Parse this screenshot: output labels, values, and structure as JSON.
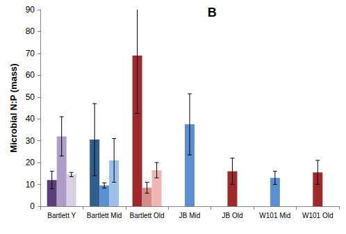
{
  "chart_data": {
    "type": "bar",
    "title": "B",
    "y_label": "Microbial N:P (mass)",
    "categories": [
      "Bartlett Y",
      "Bartlett Mid",
      "Bartlett Old",
      "JB Mid",
      "JB Old",
      "W101 Mid",
      "W101 Old"
    ],
    "series": [
      {
        "values": [
          12,
          30.5,
          69,
          null,
          null,
          null,
          null
        ],
        "errors": [
          4,
          16.5,
          26.5,
          null,
          null,
          null,
          null
        ],
        "colors": [
          "#5b3f7a",
          "#2e5f8f",
          "#9e2a2b",
          null,
          null,
          null,
          null
        ]
      },
      {
        "values": [
          32,
          9.5,
          8.5,
          37.5,
          16,
          13,
          15.5
        ],
        "errors": [
          9,
          1.2,
          2.5,
          14,
          6,
          3,
          5.5
        ],
        "colors": [
          "#b09cc8",
          "#5b8fd0",
          "#d98a8a",
          "#5b8fd0",
          "#9e2a2b",
          "#5b8fd0",
          "#9e2a2b"
        ]
      },
      {
        "values": [
          14.5,
          21,
          16.5,
          null,
          null,
          null,
          null
        ],
        "errors": [
          1,
          10,
          3.5,
          null,
          null,
          null,
          null
        ],
        "colors": [
          "#d8d0e3",
          "#9dbfe8",
          "#edb5b3",
          null,
          null,
          null,
          null
        ]
      }
    ],
    "ylim": [
      0,
      90
    ],
    "yticks": [
      0,
      10,
      20,
      30,
      40,
      50,
      60,
      70,
      80,
      90
    ],
    "grid": false
  }
}
